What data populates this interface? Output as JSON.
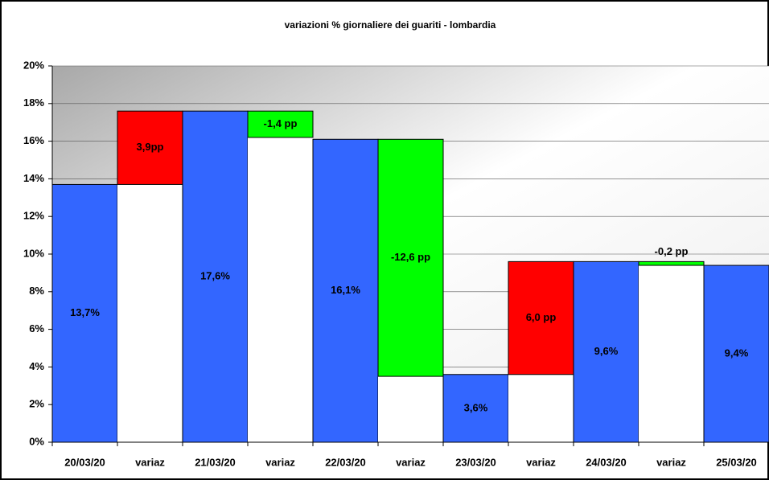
{
  "chart_data": {
    "type": "waterfall",
    "title": "variazioni % giornaliere dei guariti - lombardia",
    "categories": [
      "20/03/20",
      "variaz",
      "21/03/20",
      "variaz",
      "22/03/20",
      "variaz",
      "23/03/20",
      "variaz",
      "24/03/20",
      "variaz",
      "25/03/20"
    ],
    "values": [
      13.7,
      3.9,
      17.6,
      -1.4,
      16.1,
      -12.6,
      3.6,
      6.0,
      9.6,
      -0.2,
      9.4
    ],
    "value_labels": [
      "13,7%",
      "3,9pp",
      "17,6%",
      "-1,4 pp",
      "16,1%",
      "-12,6 pp",
      "3,6%",
      "6,0 pp",
      "9,6%",
      "-0,2 pp",
      "9,4%"
    ],
    "total_color": "#3366ff",
    "increase_color": "#ff0000",
    "decrease_color": "#00ff00",
    "ylim": [
      0,
      20
    ],
    "yticks": [
      {
        "value": 0,
        "label": "0%"
      },
      {
        "value": 2,
        "label": "2%"
      },
      {
        "value": 4,
        "label": "4%"
      },
      {
        "value": 6,
        "label": "6%"
      },
      {
        "value": 8,
        "label": "8%"
      },
      {
        "value": 10,
        "label": "10%"
      },
      {
        "value": 12,
        "label": "12%"
      },
      {
        "value": 14,
        "label": "14%"
      },
      {
        "value": 16,
        "label": "16%"
      },
      {
        "value": 18,
        "label": "18%"
      },
      {
        "value": 20,
        "label": "20%"
      }
    ],
    "grid": true
  }
}
